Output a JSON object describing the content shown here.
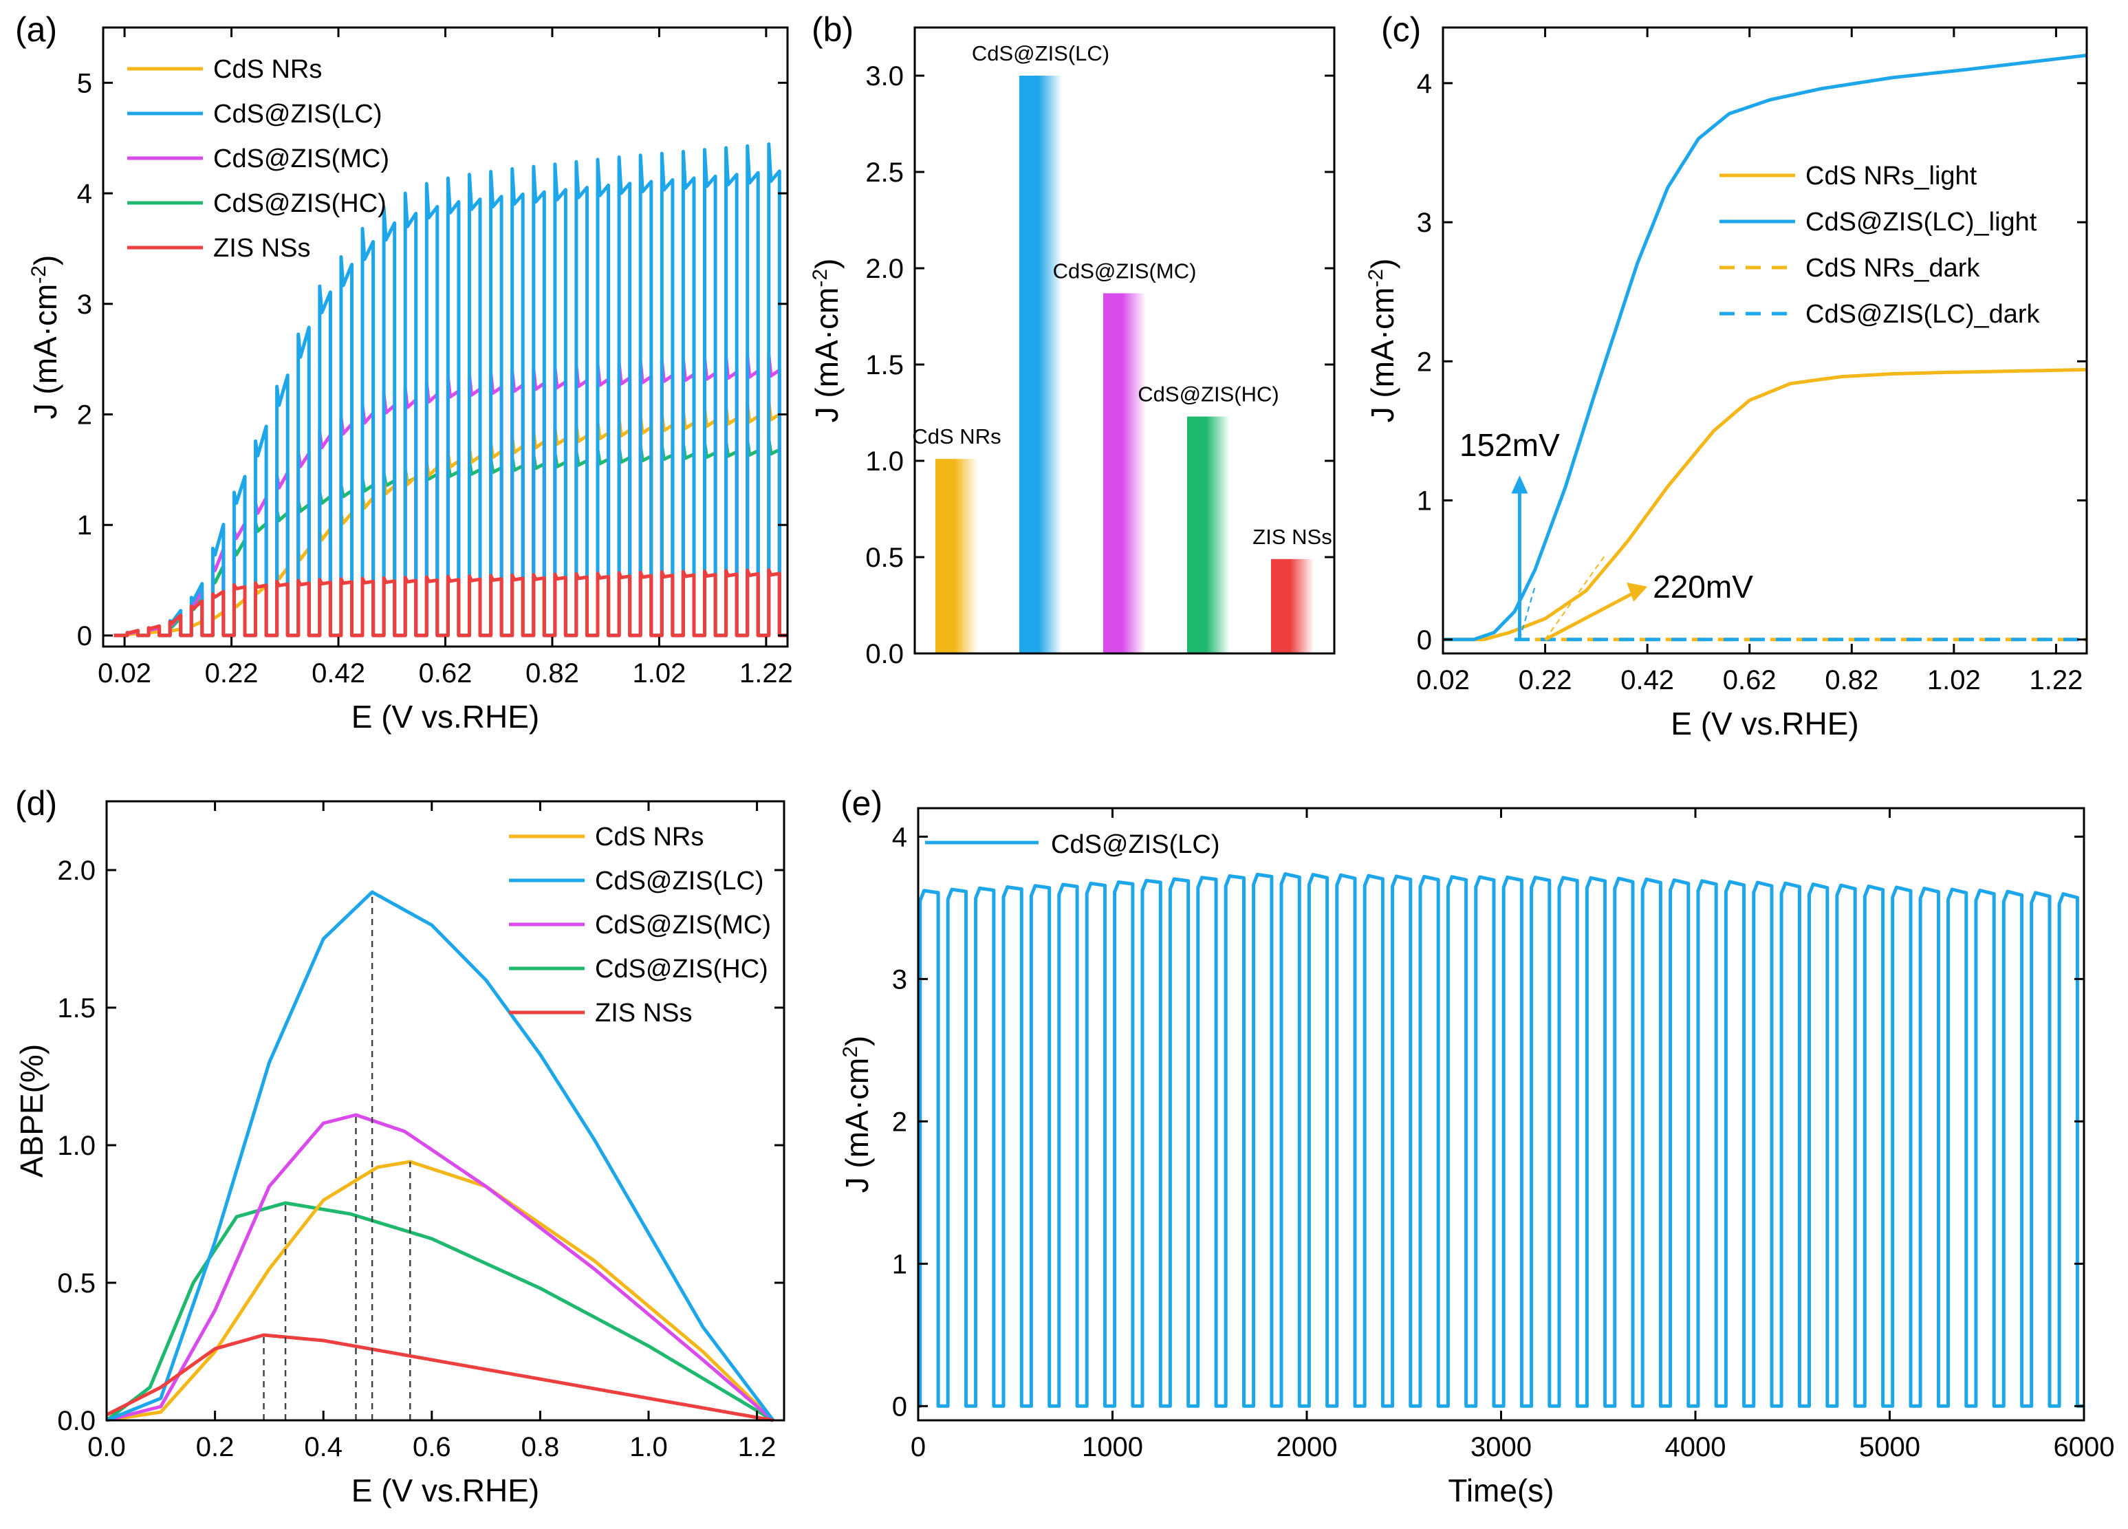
{
  "colors": {
    "cds": "#f4b719",
    "lc": "#1ea6ea",
    "mc": "#d94bea",
    "hc": "#1fb86f",
    "zis": "#ee3f3f",
    "axis": "#000000"
  },
  "chart_data": [
    {
      "id": "a",
      "panel_label": "(a)",
      "type": "line",
      "title": "",
      "xlabel": "E (V vs.RHE)",
      "ylabel_main": "J (mA·cm",
      "ylabel_sup": "-2",
      "ylabel_close": ")",
      "xlim": [
        -0.02,
        1.26
      ],
      "ylim": [
        -0.1,
        5.5
      ],
      "xticks": [
        "0.02",
        "0.22",
        "0.42",
        "0.62",
        "0.82",
        "1.02",
        "1.22"
      ],
      "yticks": [
        "0",
        "1",
        "2",
        "3",
        "4",
        "5"
      ],
      "legend": "top-left",
      "chopped_light": {
        "start": 0.025,
        "period": 0.04,
        "duty": 0.5
      },
      "series": [
        {
          "name": "CdS NRs",
          "color_key": "cds",
          "x": [
            0.0,
            0.12,
            0.18,
            0.22,
            0.3,
            0.4,
            0.5,
            0.62,
            0.8,
            1.0,
            1.24
          ],
          "y": [
            0.0,
            0.05,
            0.15,
            0.25,
            0.5,
            0.95,
            1.3,
            1.55,
            1.75,
            1.88,
            2.0
          ]
        },
        {
          "name": "CdS@ZIS(LC)",
          "color_key": "lc",
          "x": [
            0.0,
            0.1,
            0.16,
            0.2,
            0.26,
            0.32,
            0.38,
            0.46,
            0.52,
            0.58,
            0.64,
            0.74,
            0.84,
            0.94,
            1.04,
            1.14,
            1.24
          ],
          "y": [
            0.0,
            0.1,
            0.4,
            0.95,
            1.6,
            2.3,
            2.95,
            3.45,
            3.72,
            3.85,
            3.92,
            3.98,
            4.03,
            4.08,
            4.12,
            4.16,
            4.2
          ]
        },
        {
          "name": "CdS@ZIS(MC)",
          "color_key": "mc",
          "x": [
            0.0,
            0.1,
            0.16,
            0.2,
            0.26,
            0.32,
            0.4,
            0.5,
            0.62,
            0.8,
            1.0,
            1.24
          ],
          "y": [
            0.0,
            0.08,
            0.35,
            0.75,
            1.1,
            1.45,
            1.8,
            2.05,
            2.2,
            2.28,
            2.34,
            2.4
          ]
        },
        {
          "name": "CdS@ZIS(HC)",
          "color_key": "hc",
          "x": [
            0.0,
            0.1,
            0.16,
            0.2,
            0.26,
            0.32,
            0.4,
            0.5,
            0.62,
            0.8,
            1.0,
            1.24
          ],
          "y": [
            0.0,
            0.06,
            0.3,
            0.6,
            0.95,
            1.1,
            1.25,
            1.38,
            1.47,
            1.55,
            1.62,
            1.68
          ]
        },
        {
          "name": "ZIS NSs",
          "color_key": "zis",
          "x": [
            0.0,
            0.1,
            0.16,
            0.22,
            0.3,
            0.4,
            0.6,
            0.8,
            1.0,
            1.24
          ],
          "y": [
            0.0,
            0.1,
            0.3,
            0.43,
            0.46,
            0.48,
            0.5,
            0.52,
            0.54,
            0.56
          ]
        }
      ]
    },
    {
      "id": "b",
      "panel_label": "(b)",
      "type": "bar",
      "title": "",
      "xlabel": "",
      "ylabel_main": "J (mA·cm",
      "ylabel_sup": "-2",
      "ylabel_close": ")",
      "ylim": [
        0,
        3.25
      ],
      "yticks": [
        "0.0",
        "0.5",
        "1.0",
        "1.5",
        "2.0",
        "2.5",
        "3.0"
      ],
      "categories": [
        "CdS NRs",
        "CdS@ZIS(LC)",
        "CdS@ZIS(MC)",
        "CdS@ZIS(HC)",
        "ZIS NSs"
      ],
      "values": [
        1.01,
        3.0,
        1.87,
        1.23,
        0.49
      ],
      "color_keys": [
        "cds",
        "lc",
        "mc",
        "hc",
        "zis"
      ]
    },
    {
      "id": "c",
      "panel_label": "(c)",
      "type": "line",
      "title": "",
      "xlabel": "E (V vs.RHE)",
      "ylabel_main": "J (mA·cm",
      "ylabel_sup": "-2",
      "ylabel_close": ")",
      "xlim": [
        0.02,
        1.28
      ],
      "ylim": [
        -0.1,
        4.4
      ],
      "xticks": [
        "0.02",
        "0.22",
        "0.42",
        "0.62",
        "0.82",
        "1.02",
        "1.22"
      ],
      "yticks": [
        "0",
        "1",
        "2",
        "3",
        "4"
      ],
      "legend": "right",
      "annotations": [
        {
          "text": "152mV",
          "color_key": "lc"
        },
        {
          "text": "220mV",
          "color_key": "cds"
        }
      ],
      "series": [
        {
          "name": "CdS NRs_light",
          "color_key": "cds",
          "style": "solid",
          "x": [
            0.02,
            0.1,
            0.15,
            0.22,
            0.3,
            0.38,
            0.46,
            0.55,
            0.62,
            0.7,
            0.8,
            0.9,
            1.0,
            1.28
          ],
          "y": [
            0.0,
            0.0,
            0.05,
            0.15,
            0.35,
            0.7,
            1.1,
            1.5,
            1.72,
            1.84,
            1.89,
            1.91,
            1.92,
            1.94
          ]
        },
        {
          "name": "CdS@ZIS(LC)_light",
          "color_key": "lc",
          "style": "solid",
          "x": [
            0.02,
            0.08,
            0.12,
            0.16,
            0.2,
            0.26,
            0.32,
            0.4,
            0.46,
            0.52,
            0.58,
            0.66,
            0.76,
            0.9,
            1.05,
            1.28
          ],
          "y": [
            0.0,
            0.0,
            0.05,
            0.2,
            0.5,
            1.1,
            1.8,
            2.7,
            3.25,
            3.6,
            3.78,
            3.88,
            3.96,
            4.04,
            4.1,
            4.2
          ]
        },
        {
          "name": "CdS NRs_dark",
          "color_key": "cds",
          "style": "dashed",
          "x": [
            0.2,
            1.28
          ],
          "y": [
            0.0,
            0.0
          ]
        },
        {
          "name": "CdS@ZIS(LC)_dark",
          "color_key": "lc",
          "style": "dashed",
          "x": [
            0.16,
            1.28
          ],
          "y": [
            0.0,
            0.0
          ]
        }
      ]
    },
    {
      "id": "d",
      "panel_label": "(d)",
      "type": "line",
      "title": "",
      "xlabel": "E (V vs.RHE)",
      "ylabel": "ABPE(%)",
      "xlim": [
        0.0,
        1.25
      ],
      "ylim": [
        0.0,
        2.25
      ],
      "xticks": [
        "0.0",
        "0.2",
        "0.4",
        "0.6",
        "0.8",
        "1.0",
        "1.2"
      ],
      "yticks": [
        "0.0",
        "0.5",
        "1.0",
        "1.5",
        "2.0"
      ],
      "legend": "top-right",
      "peak_markers_x": [
        0.29,
        0.33,
        0.46,
        0.49,
        0.56
      ],
      "series": [
        {
          "name": "CdS NRs",
          "color_key": "cds",
          "x": [
            0.0,
            0.1,
            0.2,
            0.3,
            0.4,
            0.5,
            0.56,
            0.7,
            0.9,
            1.1,
            1.23
          ],
          "y": [
            0.0,
            0.03,
            0.25,
            0.55,
            0.8,
            0.92,
            0.94,
            0.85,
            0.58,
            0.25,
            0.0
          ]
        },
        {
          "name": "CdS@ZIS(LC)",
          "color_key": "lc",
          "x": [
            0.0,
            0.1,
            0.2,
            0.3,
            0.4,
            0.49,
            0.6,
            0.7,
            0.8,
            0.9,
            1.0,
            1.1,
            1.23
          ],
          "y": [
            0.0,
            0.08,
            0.65,
            1.3,
            1.75,
            1.92,
            1.8,
            1.6,
            1.33,
            1.02,
            0.68,
            0.34,
            0.0
          ]
        },
        {
          "name": "CdS@ZIS(MC)",
          "color_key": "mc",
          "x": [
            0.0,
            0.1,
            0.2,
            0.3,
            0.4,
            0.46,
            0.55,
            0.7,
            0.9,
            1.1,
            1.23
          ],
          "y": [
            0.0,
            0.05,
            0.4,
            0.85,
            1.08,
            1.11,
            1.05,
            0.85,
            0.55,
            0.22,
            0.0
          ]
        },
        {
          "name": "CdS@ZIS(HC)",
          "color_key": "hc",
          "x": [
            0.0,
            0.08,
            0.16,
            0.24,
            0.33,
            0.45,
            0.6,
            0.8,
            1.0,
            1.23
          ],
          "y": [
            0.0,
            0.12,
            0.5,
            0.74,
            0.79,
            0.75,
            0.66,
            0.48,
            0.27,
            0.0
          ]
        },
        {
          "name": "ZIS NSs",
          "color_key": "zis",
          "x": [
            0.0,
            0.1,
            0.2,
            0.29,
            0.4,
            0.6,
            0.8,
            1.0,
            1.23
          ],
          "y": [
            0.02,
            0.12,
            0.26,
            0.31,
            0.29,
            0.22,
            0.15,
            0.08,
            0.0
          ]
        }
      ]
    },
    {
      "id": "e",
      "panel_label": "(e)",
      "type": "line",
      "title": "",
      "xlabel": "Time(s)",
      "ylabel_main": "J (mA·cm",
      "ylabel_sup": "2",
      "ylabel_close": ")",
      "xlim": [
        0,
        6000
      ],
      "ylim": [
        -0.1,
        4.2
      ],
      "xticks": [
        "0",
        "1000",
        "2000",
        "3000",
        "4000",
        "5000",
        "6000"
      ],
      "yticks": [
        "0",
        "1",
        "2",
        "3",
        "4"
      ],
      "legend": "top-left",
      "chopped_light": {
        "start": 10,
        "period": 143,
        "duty": 0.65
      },
      "series": [
        {
          "name": "CdS@ZIS(LC)",
          "color_key": "lc",
          "x": [
            0,
            1000,
            1800,
            2500,
            3500,
            4500,
            5500,
            6000
          ],
          "y": [
            3.6,
            3.66,
            3.72,
            3.7,
            3.69,
            3.65,
            3.6,
            3.57
          ]
        }
      ]
    }
  ]
}
